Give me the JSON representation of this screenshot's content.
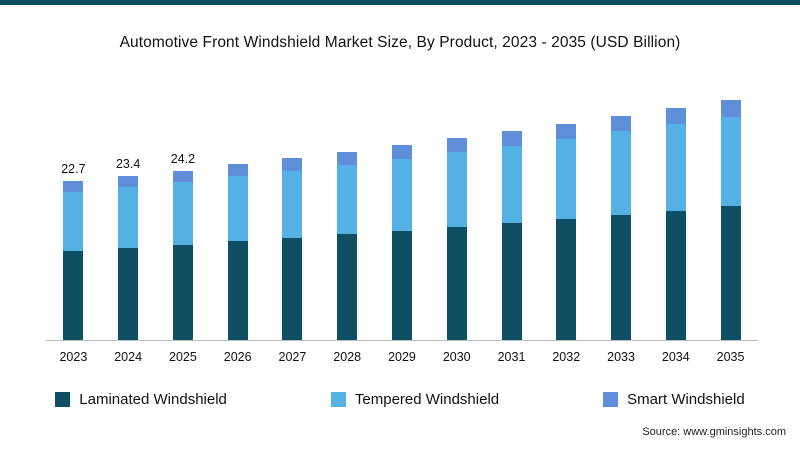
{
  "page": {
    "source": "Source: www.gminsights.com"
  },
  "colors": {
    "accent": "#0e4f63",
    "laminated": "#0e4f63",
    "tempered": "#55b1e4",
    "smart": "#5f8fd8",
    "axis": "#bdbdbd"
  },
  "chart_data": {
    "type": "bar",
    "stacked": true,
    "title": "Automotive Front Windshield Market Size, By Product, 2023 - 2035 (USD Billion)",
    "units": "USD Billion",
    "xlabel": "",
    "ylabel": "",
    "legend_position": "bottom",
    "grid": false,
    "ylim": [
      0,
      36
    ],
    "categories": [
      "2023",
      "2024",
      "2025",
      "2026",
      "2027",
      "2028",
      "2029",
      "2030",
      "2031",
      "2032",
      "2033",
      "2034",
      "2035"
    ],
    "series": [
      {
        "name": "Laminated Windshield",
        "color_key": "laminated",
        "values": [
          12.7,
          13.1,
          13.6,
          14.1,
          14.6,
          15.1,
          15.6,
          16.1,
          16.7,
          17.3,
          17.9,
          18.5,
          19.2
        ]
      },
      {
        "name": "Tempered Windshield",
        "color_key": "tempered",
        "values": [
          8.4,
          8.7,
          9.0,
          9.3,
          9.6,
          9.9,
          10.3,
          10.7,
          11.0,
          11.4,
          11.9,
          12.3,
          12.7
        ]
      },
      {
        "name": "Smart Windshield",
        "color_key": "smart",
        "values": [
          1.6,
          1.6,
          1.6,
          1.7,
          1.8,
          1.9,
          1.9,
          2.0,
          2.1,
          2.2,
          2.2,
          2.3,
          2.4
        ]
      }
    ],
    "totals": [
      22.7,
      23.4,
      24.2,
      25.1,
      26.0,
      26.9,
      27.8,
      28.8,
      29.8,
      30.9,
      32.0,
      33.1,
      34.3
    ],
    "value_labels": [
      "22.7",
      "23.4",
      "24.2",
      "",
      "",
      "",
      "",
      "",
      "",
      "",
      "",
      "",
      ""
    ]
  }
}
